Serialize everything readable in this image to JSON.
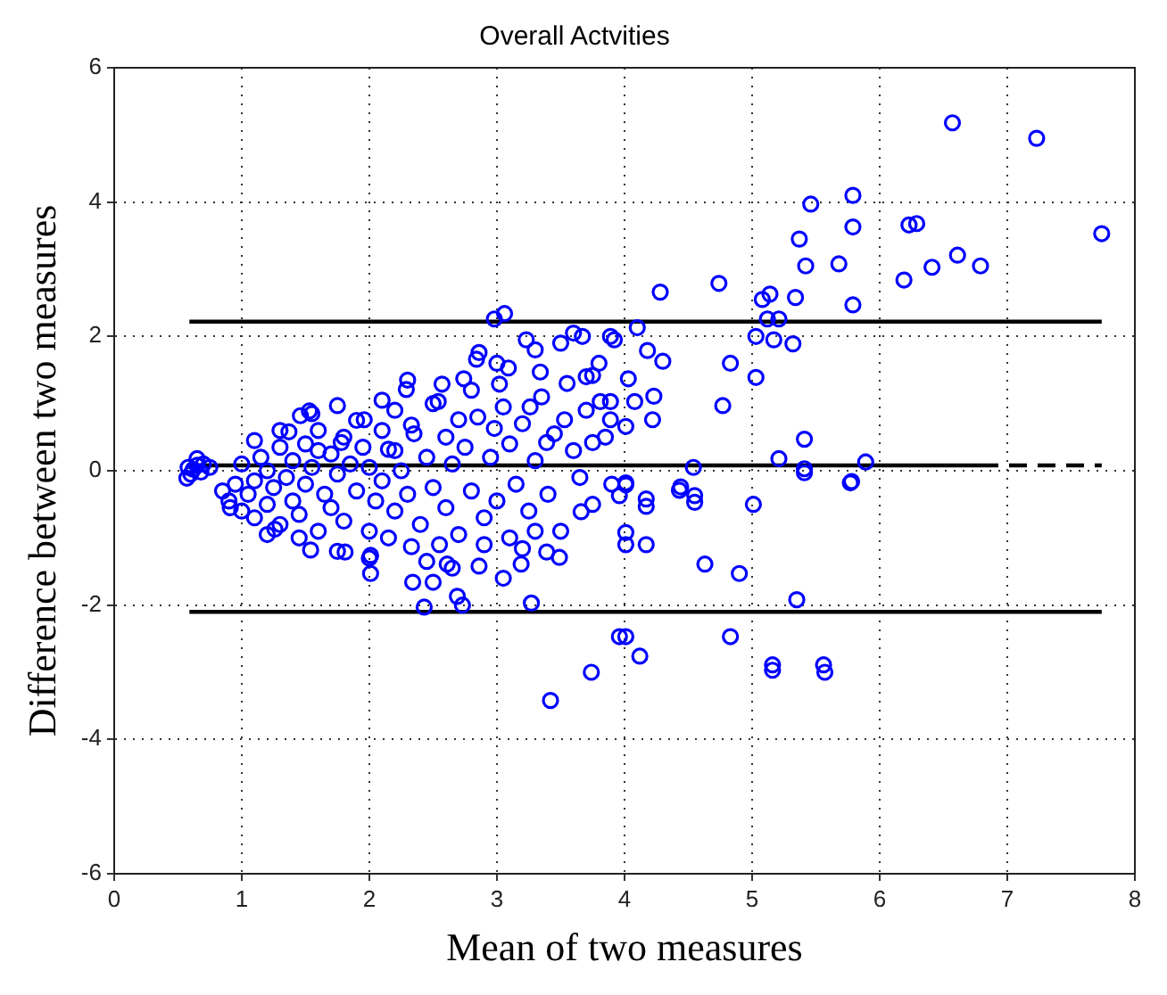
{
  "chart_data": {
    "type": "scatter",
    "title": "Overall Actvities",
    "xlabel": "Mean of two measures",
    "ylabel": "Difference between two measures",
    "xlim": [
      0,
      8
    ],
    "ylim": [
      -6,
      6
    ],
    "xticks": [
      0,
      1,
      2,
      3,
      4,
      5,
      6,
      7,
      8
    ],
    "yticks": [
      -6,
      -4,
      -2,
      0,
      2,
      4,
      6
    ],
    "grid": true,
    "marker": "circle",
    "series": [
      {
        "color": "#0000ff",
        "x": [
          6.57,
          7.23,
          7.74,
          5.79,
          5.46,
          5.79,
          5.37,
          6.23,
          6.29,
          5.68,
          5.42,
          6.61,
          6.41,
          6.79,
          6.19,
          5.79,
          5.34,
          5.14,
          5.08,
          4.74,
          4.28,
          5.21,
          5.12,
          5.03,
          5.17,
          5.32,
          4.83,
          5.03,
          4.77,
          4.3,
          4.18,
          4.1,
          3.92,
          4.03,
          4.23,
          4.08,
          4.22,
          4.01,
          3.89,
          5.41,
          5.21,
          5.89,
          4.54,
          5.41,
          5.78,
          4.01,
          4.44,
          4.01,
          3.96,
          4.17,
          4.17,
          4.43,
          4.55,
          4.55,
          5.41,
          5.77,
          5.01,
          4.01,
          4.01,
          4.17,
          4.63,
          4.9,
          5.35,
          4.01,
          4.12,
          4.83,
          5.16,
          5.16,
          5.56,
          5.57,
          3.42,
          3.74,
          3.96,
          3.27,
          2.73,
          2.69,
          2.43,
          2.5,
          2.34,
          2.01,
          2.01,
          1.54,
          1.81,
          2.86,
          2.61,
          3.39,
          3.49,
          3.19,
          3.66,
          3.2,
          2.33,
          1.26,
          0.91,
          0.57,
          3.06,
          2.98,
          3.23,
          3.6,
          3.67,
          3.89,
          2.86,
          2.84,
          2.74,
          3.02,
          3.09,
          2.57,
          2.54,
          2.29,
          2.1,
          1.75,
          1.53,
          1.46,
          1.37,
          0.65,
          0.58,
          3.34,
          3.26,
          3.53,
          3.75,
          3.81,
          3.89,
          3.39,
          2.33,
          2.7,
          2.98,
          1.96,
          2.15,
          1.78,
          3.75,
          0.6,
          0.62,
          0.65,
          0.7,
          0.68,
          0.75,
          0.85,
          0.9,
          0.95,
          1.0,
          1.0,
          1.05,
          1.1,
          1.1,
          1.15,
          1.2,
          1.2,
          1.25,
          1.3,
          1.3,
          1.35,
          1.4,
          1.4,
          1.45,
          1.5,
          1.5,
          1.55,
          1.6,
          1.6,
          1.65,
          1.7,
          1.7,
          1.75,
          1.8,
          1.8,
          1.85,
          1.9,
          1.95,
          2.0,
          2.0,
          2.05,
          2.1,
          2.1,
          2.15,
          2.2,
          2.2,
          2.25,
          2.3,
          2.35,
          2.4,
          2.45,
          2.5,
          2.55,
          2.6,
          2.6,
          2.65,
          2.7,
          2.75,
          2.8,
          2.85,
          2.9,
          2.95,
          3.0,
          3.05,
          3.1,
          3.1,
          3.15,
          3.2,
          3.25,
          3.3,
          3.35,
          3.4,
          3.45,
          3.5,
          3.55,
          3.6,
          3.65,
          3.7,
          3.75,
          3.8,
          3.85,
          3.9,
          1.3,
          1.6,
          1.9,
          2.2,
          1.1,
          1.45,
          1.75,
          2.3,
          2.5,
          2.8,
          3.0,
          3.3,
          3.5,
          3.7,
          1.2,
          2.0,
          2.45,
          2.9,
          3.3,
          1.55,
          2.65,
          3.05
        ],
        "values": [
          5.18,
          4.95,
          3.53,
          4.1,
          3.97,
          3.63,
          3.45,
          3.66,
          3.68,
          3.08,
          3.05,
          3.21,
          3.03,
          3.05,
          2.84,
          2.47,
          2.58,
          2.63,
          2.55,
          2.79,
          2.66,
          2.26,
          2.26,
          2.0,
          1.95,
          1.89,
          1.6,
          1.39,
          0.97,
          1.63,
          1.79,
          2.13,
          1.95,
          1.37,
          1.11,
          1.03,
          0.76,
          0.66,
          1.03,
          0.47,
          0.18,
          0.13,
          0.05,
          0.03,
          -0.16,
          -0.18,
          -0.24,
          -0.21,
          -0.37,
          -0.42,
          -0.53,
          -0.29,
          -0.37,
          -0.47,
          -0.03,
          -0.18,
          -0.5,
          -0.92,
          -1.1,
          -1.1,
          -1.39,
          -1.53,
          -1.92,
          -2.47,
          -2.76,
          -2.47,
          -2.89,
          -2.97,
          -2.89,
          -3.0,
          -3.42,
          -3.0,
          -2.47,
          -1.97,
          -2.0,
          -1.87,
          -2.03,
          -1.66,
          -1.66,
          -1.53,
          -1.26,
          -1.18,
          -1.21,
          -1.42,
          -1.39,
          -1.21,
          -1.29,
          -1.39,
          -0.61,
          -1.16,
          -1.13,
          -0.87,
          -0.55,
          -0.11,
          2.34,
          2.26,
          1.95,
          2.05,
          2.0,
          2.0,
          1.76,
          1.66,
          1.37,
          1.29,
          1.53,
          1.29,
          1.03,
          1.21,
          1.05,
          0.97,
          0.89,
          0.82,
          0.58,
          0.18,
          0.05,
          1.47,
          0.95,
          0.76,
          1.42,
          1.03,
          0.76,
          0.42,
          0.68,
          0.76,
          0.63,
          0.76,
          0.32,
          0.42,
          0.42,
          -0.05,
          0.02,
          0.08,
          0.1,
          -0.02,
          0.05,
          -0.3,
          -0.45,
          -0.2,
          -0.6,
          0.1,
          -0.35,
          -0.15,
          -0.7,
          0.2,
          -0.5,
          0.0,
          -0.25,
          0.35,
          -0.8,
          -0.1,
          -0.45,
          0.15,
          -0.65,
          0.4,
          -0.2,
          0.05,
          -0.9,
          0.6,
          -0.35,
          0.25,
          -0.55,
          -0.05,
          0.5,
          -0.75,
          0.1,
          -0.3,
          0.35,
          -0.9,
          0.05,
          -0.45,
          0.6,
          -0.15,
          -1.0,
          0.3,
          -0.6,
          0.0,
          -0.35,
          0.55,
          -0.8,
          0.2,
          -0.25,
          -1.1,
          0.5,
          -0.55,
          0.1,
          -0.95,
          0.35,
          -0.3,
          0.8,
          -0.7,
          0.2,
          -0.45,
          0.95,
          -1.0,
          0.4,
          -0.2,
          0.7,
          -0.6,
          0.15,
          1.1,
          -0.35,
          0.55,
          -0.9,
          1.3,
          0.3,
          -0.1,
          0.9,
          -0.5,
          1.6,
          0.5,
          -0.2,
          0.6,
          0.3,
          0.75,
          0.9,
          0.45,
          -1.0,
          -1.2,
          1.35,
          1.0,
          1.2,
          1.6,
          1.8,
          1.9,
          1.4,
          -0.95,
          -1.3,
          -1.35,
          -1.1,
          -0.9,
          0.85,
          -1.45,
          -1.6
        ]
      },
      {
        "type": "line",
        "color": "#000000",
        "line_style": "solid",
        "marker": "none",
        "x": [
          0.59,
          7.74
        ],
        "values": [
          2.22,
          2.22
        ]
      },
      {
        "type": "line",
        "color": "#000000",
        "line_style": "solid",
        "marker": "none",
        "x": [
          0.59,
          6.79
        ],
        "values": [
          0.08,
          0.08
        ]
      },
      {
        "type": "line",
        "color": "#000000",
        "line_style": "dashed",
        "marker": "none",
        "x": [
          6.79,
          7.74
        ],
        "values": [
          0.08,
          0.08
        ]
      },
      {
        "type": "line",
        "color": "#000000",
        "line_style": "solid",
        "marker": "none",
        "x": [
          0.59,
          7.74
        ],
        "values": [
          -2.1,
          -2.1
        ]
      }
    ]
  }
}
